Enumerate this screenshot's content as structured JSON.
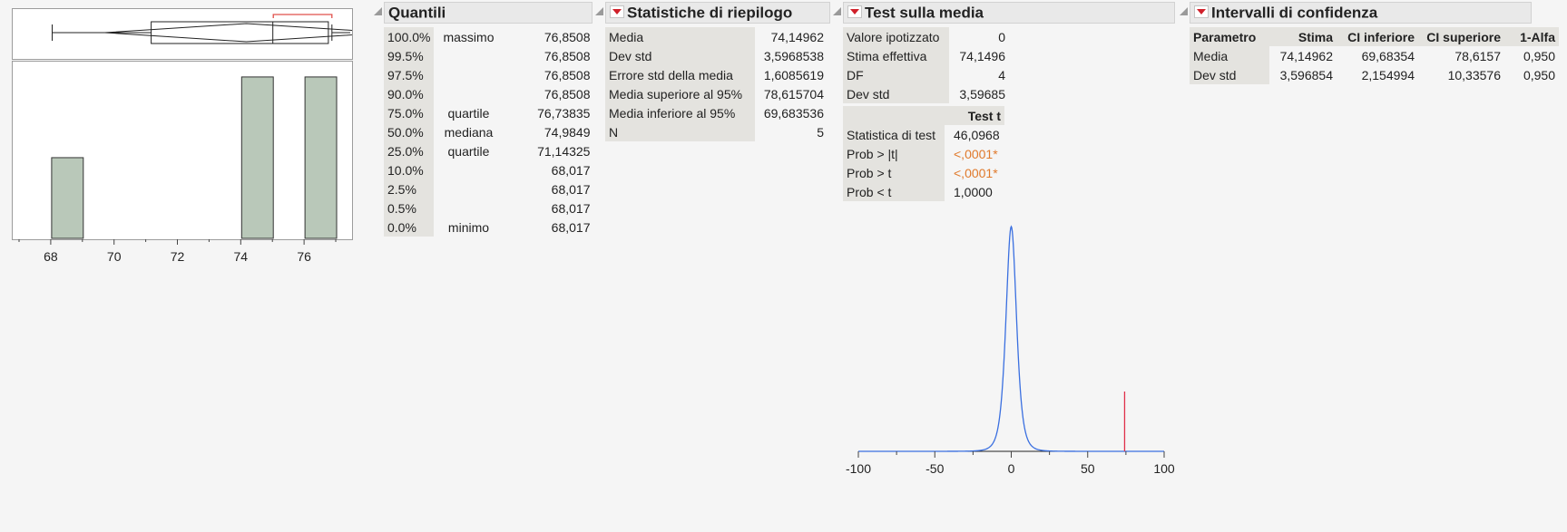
{
  "distribution": {
    "chart_data": {
      "type": "histogram",
      "bins": [
        {
          "start": 68,
          "end": 69,
          "count": 1
        },
        {
          "start": 69,
          "end": 70,
          "count": 0
        },
        {
          "start": 70,
          "end": 71,
          "count": 0
        },
        {
          "start": 71,
          "end": 72,
          "count": 0
        },
        {
          "start": 72,
          "end": 73,
          "count": 0
        },
        {
          "start": 73,
          "end": 74,
          "count": 0
        },
        {
          "start": 74,
          "end": 75,
          "count": 2
        },
        {
          "start": 75,
          "end": 76,
          "count": 0
        },
        {
          "start": 76,
          "end": 77,
          "count": 2
        }
      ],
      "xlim": [
        67,
        77.2
      ],
      "ylim": [
        0,
        2.1
      ],
      "x_ticks": [
        "68",
        "70",
        "72",
        "74",
        "76"
      ],
      "bar_color": "#b9c8b9",
      "boxplot": {
        "min": 68.017,
        "q1": 71.14325,
        "median": 74.9849,
        "q3": 76.73835,
        "max": 76.8508,
        "mean": 74.14962
      },
      "shortest_half_bracket": [
        75,
        76.85
      ],
      "bracket_color": "#e0504a"
    }
  },
  "quantiles": {
    "title": "Quantili",
    "rows": [
      {
        "pct": "100.0%",
        "label": "massimo",
        "value": "76,8508"
      },
      {
        "pct": "99.5%",
        "label": "",
        "value": "76,8508"
      },
      {
        "pct": "97.5%",
        "label": "",
        "value": "76,8508"
      },
      {
        "pct": "90.0%",
        "label": "",
        "value": "76,8508"
      },
      {
        "pct": "75.0%",
        "label": "quartile",
        "value": "76,73835"
      },
      {
        "pct": "50.0%",
        "label": "mediana",
        "value": "74,9849"
      },
      {
        "pct": "25.0%",
        "label": "quartile",
        "value": "71,14325"
      },
      {
        "pct": "10.0%",
        "label": "",
        "value": "68,017"
      },
      {
        "pct": "2.5%",
        "label": "",
        "value": "68,017"
      },
      {
        "pct": "0.5%",
        "label": "",
        "value": "68,017"
      },
      {
        "pct": "0.0%",
        "label": "minimo",
        "value": "68,017"
      }
    ]
  },
  "summary": {
    "title": "Statistiche di riepilogo",
    "rows": [
      {
        "label": "Media",
        "value": "74,14962"
      },
      {
        "label": "Dev std",
        "value": "3,5968538"
      },
      {
        "label": "Errore std della media",
        "value": "1,6085619"
      },
      {
        "label": "Media superiore al 95%",
        "value": "78,615704"
      },
      {
        "label": "Media inferiore al 95%",
        "value": "69,683536"
      },
      {
        "label": "N",
        "value": "5"
      }
    ]
  },
  "mean_test": {
    "title": "Test sulla media",
    "rows": [
      {
        "label": "Valore ipotizzato",
        "value": "0"
      },
      {
        "label": "Stima effettiva",
        "value": "74,1496"
      },
      {
        "label": "DF",
        "value": "4"
      },
      {
        "label": "Dev std",
        "value": "3,59685"
      }
    ],
    "test_header": "Test t",
    "test_rows": [
      {
        "label": "Statistica di test",
        "value": "46,0968",
        "highlight": false
      },
      {
        "label": "Prob > |t|",
        "value": "<,0001*",
        "highlight": true
      },
      {
        "label": "Prob > t",
        "value": "<,0001*",
        "highlight": true
      },
      {
        "label": "Prob < t",
        "value": "1,0000",
        "highlight": false
      }
    ],
    "chart_data": {
      "type": "line",
      "description_series": "t-distribution density (df 4) under hypothesized mean 0",
      "x_range": [
        -100,
        100
      ],
      "x_ticks": [
        "-100",
        "-50",
        "0",
        "50",
        "100"
      ],
      "center": 0,
      "scale": 3.59685,
      "df": 4,
      "estimate_line_x": 74.1496,
      "curve_color": "#3a6fe0",
      "estimate_color": "#e0304a"
    }
  },
  "confidence": {
    "title": "Intervalli di confidenza",
    "headers": [
      "Parametro",
      "Stima",
      "CI inferiore",
      "CI superiore",
      "1-Alfa"
    ],
    "rows": [
      [
        "Media",
        "74,14962",
        "69,68354",
        "78,6157",
        "0,950"
      ],
      [
        "Dev std",
        "3,596854",
        "2,154994",
        "10,33576",
        "0,950"
      ]
    ]
  }
}
